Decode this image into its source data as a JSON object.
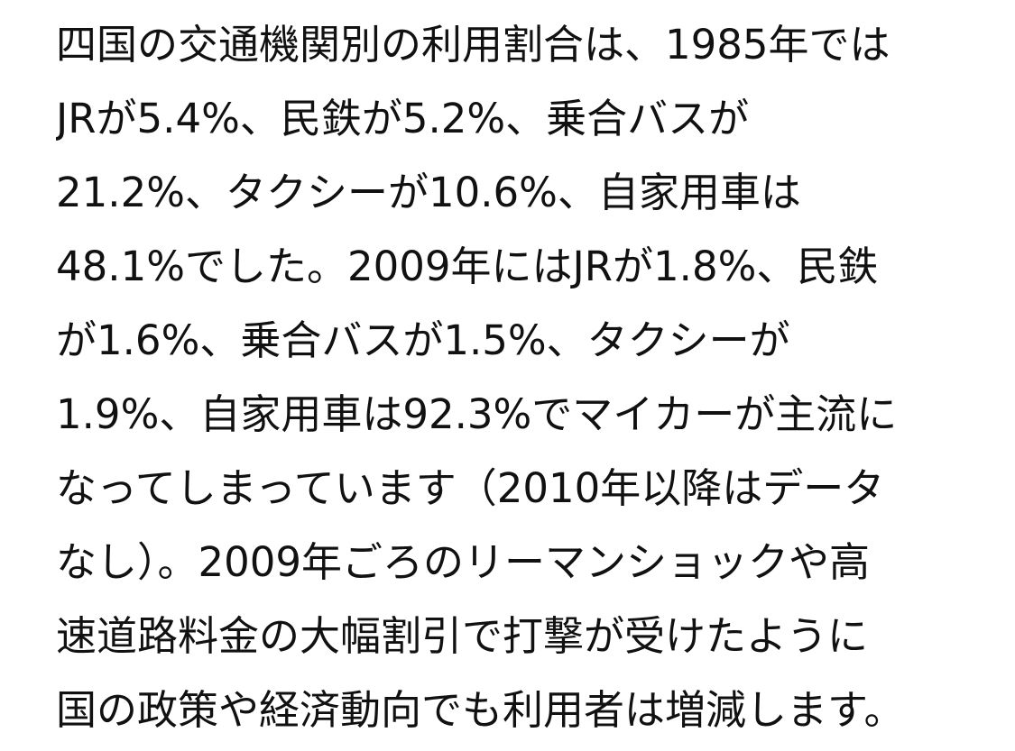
{
  "paragraph": {
    "lines": [
      "四国の交通機関別の利用割合は、1985年では",
      "JRが5.4%、民鉄が5.2%、乗合バスが",
      "21.2%、タクシーが10.6%、自家用車は",
      "48.1%でした。2009年にはJRが1.8%、民鉄",
      "が1.6%、乗合バスが1.5%、タクシーが",
      "1.9%、自家用車は92.3%でマイカーが主流に",
      "なってしまっています（2010年以降はデータ",
      "なし）。2009年ごろのリーマンショックや高",
      "速道路料金の大幅割引で打撃が受けたように",
      "国の政策や経済動向でも利用者は増減します。"
    ]
  }
}
